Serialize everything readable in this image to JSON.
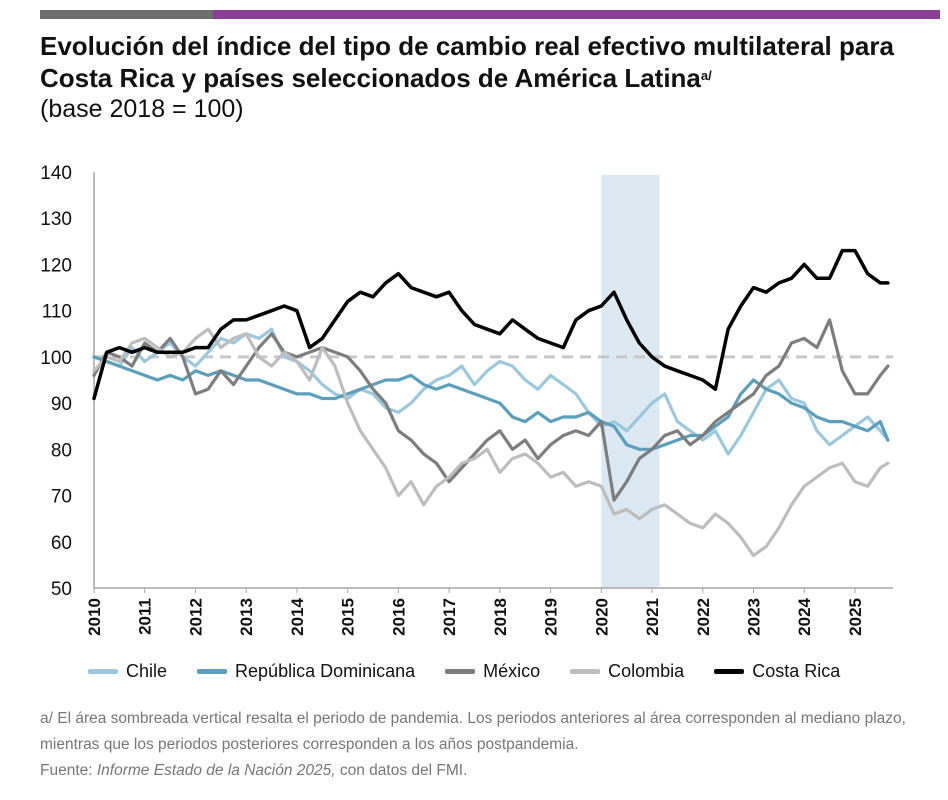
{
  "header": {
    "title": "Evolución del índice del tipo de cambio real efectivo multilateral para Costa Rica y países seleccionados de América Latina",
    "title_sup": "a/",
    "subtitle": "(base 2018 = 100)",
    "bar_colors": [
      "#6d6d6d",
      "#8a3f96"
    ]
  },
  "chart_data": {
    "type": "line",
    "title": "Evolución del índice del tipo de cambio real efectivo multilateral para Costa Rica y países seleccionados de América Latina",
    "subtitle": "(base 2018 = 100)",
    "xlabel": "",
    "ylabel": "",
    "ylim": [
      50,
      140
    ],
    "xlim": [
      2010,
      2025.75
    ],
    "yticks": [
      50,
      60,
      70,
      80,
      90,
      100,
      110,
      120,
      130,
      140
    ],
    "xticks": [
      "2010",
      "2011",
      "2012",
      "2013",
      "2014",
      "2015",
      "2016",
      "2017",
      "2018",
      "2019",
      "2020",
      "2021",
      "2022",
      "2023",
      "2024",
      "2025"
    ],
    "reference_line": {
      "value": 100,
      "color": "#c8c8c8",
      "style": "dashed"
    },
    "shaded_region": {
      "from": 2020.0,
      "to": 2021.15,
      "color": "#dde9f2",
      "label": "pandemia"
    },
    "legend_position": "bottom",
    "series": [
      {
        "name": "Chile",
        "color": "#9cc8dd",
        "x": [
          2010,
          2010.25,
          2010.5,
          2010.75,
          2011,
          2011.25,
          2011.5,
          2011.75,
          2012,
          2012.25,
          2012.5,
          2012.75,
          2013,
          2013.25,
          2013.5,
          2013.75,
          2014,
          2014.25,
          2014.5,
          2014.75,
          2015,
          2015.25,
          2015.5,
          2015.75,
          2016,
          2016.25,
          2016.5,
          2016.75,
          2017,
          2017.25,
          2017.5,
          2017.75,
          2018,
          2018.25,
          2018.5,
          2018.75,
          2019,
          2019.25,
          2019.5,
          2019.75,
          2020,
          2020.25,
          2020.5,
          2020.75,
          2021,
          2021.25,
          2021.5,
          2021.75,
          2022,
          2022.25,
          2022.5,
          2022.75,
          2023,
          2023.25,
          2023.5,
          2023.75,
          2024,
          2024.25,
          2024.5,
          2024.75,
          2025,
          2025.25,
          2025.5,
          2025.65
        ],
        "y": [
          100,
          99,
          98,
          102,
          99,
          101,
          103,
          100,
          98,
          101,
          104,
          103,
          105,
          104,
          106,
          100,
          99,
          97,
          94,
          92,
          91,
          93,
          92,
          89,
          88,
          90,
          93,
          95,
          96,
          98,
          94,
          97,
          99,
          98,
          95,
          93,
          96,
          94,
          92,
          88,
          85,
          86,
          84,
          87,
          90,
          92,
          86,
          84,
          82,
          84,
          79,
          83,
          88,
          93,
          95,
          91,
          90,
          84,
          81,
          83,
          85,
          87,
          84,
          82
        ]
      },
      {
        "name": "República Dominicana",
        "color": "#5b9fbd",
        "x": [
          2010,
          2010.25,
          2010.5,
          2010.75,
          2011,
          2011.25,
          2011.5,
          2011.75,
          2012,
          2012.25,
          2012.5,
          2012.75,
          2013,
          2013.25,
          2013.5,
          2013.75,
          2014,
          2014.25,
          2014.5,
          2014.75,
          2015,
          2015.25,
          2015.5,
          2015.75,
          2016,
          2016.25,
          2016.5,
          2016.75,
          2017,
          2017.25,
          2017.5,
          2017.75,
          2018,
          2018.25,
          2018.5,
          2018.75,
          2019,
          2019.25,
          2019.5,
          2019.75,
          2020,
          2020.25,
          2020.5,
          2020.75,
          2021,
          2021.25,
          2021.5,
          2021.75,
          2022,
          2022.25,
          2022.5,
          2022.75,
          2023,
          2023.25,
          2023.5,
          2023.75,
          2024,
          2024.25,
          2024.5,
          2024.75,
          2025,
          2025.25,
          2025.5,
          2025.65
        ],
        "y": [
          100,
          99,
          98,
          97,
          96,
          95,
          96,
          95,
          97,
          96,
          97,
          96,
          95,
          95,
          94,
          93,
          92,
          92,
          91,
          91,
          92,
          93,
          94,
          95,
          95,
          96,
          94,
          93,
          94,
          93,
          92,
          91,
          90,
          87,
          86,
          88,
          86,
          87,
          87,
          88,
          86,
          85,
          81,
          80,
          80,
          81,
          82,
          83,
          83,
          85,
          87,
          92,
          95,
          93,
          92,
          90,
          89,
          87,
          86,
          86,
          85,
          84,
          86,
          82
        ]
      },
      {
        "name": "México",
        "color": "#7d7d7d",
        "x": [
          2010,
          2010.25,
          2010.5,
          2010.75,
          2011,
          2011.25,
          2011.5,
          2011.75,
          2012,
          2012.25,
          2012.5,
          2012.75,
          2013,
          2013.25,
          2013.5,
          2013.75,
          2014,
          2014.25,
          2014.5,
          2014.75,
          2015,
          2015.25,
          2015.5,
          2015.75,
          2016,
          2016.25,
          2016.5,
          2016.75,
          2017,
          2017.25,
          2017.5,
          2017.75,
          2018,
          2018.25,
          2018.5,
          2018.75,
          2019,
          2019.25,
          2019.5,
          2019.75,
          2020,
          2020.25,
          2020.5,
          2020.75,
          2021,
          2021.25,
          2021.5,
          2021.75,
          2022,
          2022.25,
          2022.5,
          2022.75,
          2023,
          2023.25,
          2023.5,
          2023.75,
          2024,
          2024.25,
          2024.5,
          2024.75,
          2025,
          2025.25,
          2025.5,
          2025.65
        ],
        "y": [
          96,
          101,
          100,
          98,
          103,
          101,
          104,
          100,
          92,
          93,
          97,
          94,
          98,
          102,
          105,
          101,
          100,
          101,
          102,
          101,
          100,
          97,
          93,
          90,
          84,
          82,
          79,
          77,
          73,
          76,
          79,
          82,
          84,
          80,
          82,
          78,
          81,
          83,
          84,
          83,
          86,
          69,
          73,
          78,
          80,
          83,
          84,
          81,
          83,
          86,
          88,
          90,
          92,
          96,
          98,
          103,
          104,
          102,
          108,
          97,
          92,
          92,
          96,
          98
        ]
      },
      {
        "name": "Colombia",
        "color": "#bdbdbd",
        "x": [
          2010,
          2010.25,
          2010.5,
          2010.75,
          2011,
          2011.25,
          2011.5,
          2011.75,
          2012,
          2012.25,
          2012.5,
          2012.75,
          2013,
          2013.25,
          2013.5,
          2013.75,
          2014,
          2014.25,
          2014.5,
          2014.75,
          2015,
          2015.25,
          2015.5,
          2015.75,
          2016,
          2016.25,
          2016.5,
          2016.75,
          2017,
          2017.25,
          2017.5,
          2017.75,
          2018,
          2018.25,
          2018.5,
          2018.75,
          2019,
          2019.25,
          2019.5,
          2019.75,
          2020,
          2020.25,
          2020.5,
          2020.75,
          2021,
          2021.25,
          2021.5,
          2021.75,
          2022,
          2022.25,
          2022.5,
          2022.75,
          2023,
          2023.25,
          2023.5,
          2023.75,
          2024,
          2024.25,
          2024.5,
          2024.75,
          2025,
          2025.25,
          2025.5,
          2025.65
        ],
        "y": [
          97,
          100,
          99,
          103,
          104,
          102,
          100,
          101,
          104,
          106,
          102,
          104,
          105,
          100,
          98,
          101,
          99,
          95,
          102,
          98,
          90,
          84,
          80,
          76,
          70,
          73,
          68,
          72,
          74,
          77,
          78,
          80,
          75,
          78,
          79,
          77,
          74,
          75,
          72,
          73,
          72,
          66,
          67,
          65,
          67,
          68,
          66,
          64,
          63,
          66,
          64,
          61,
          57,
          59,
          63,
          68,
          72,
          74,
          76,
          77,
          73,
          72,
          76,
          77
        ]
      },
      {
        "name": "Costa Rica",
        "color": "#000000",
        "x": [
          2010,
          2010.25,
          2010.5,
          2010.75,
          2011,
          2011.25,
          2011.5,
          2011.75,
          2012,
          2012.25,
          2012.5,
          2012.75,
          2013,
          2013.25,
          2013.5,
          2013.75,
          2014,
          2014.25,
          2014.5,
          2014.75,
          2015,
          2015.25,
          2015.5,
          2015.75,
          2016,
          2016.25,
          2016.5,
          2016.75,
          2017,
          2017.25,
          2017.5,
          2017.75,
          2018,
          2018.25,
          2018.5,
          2018.75,
          2019,
          2019.25,
          2019.5,
          2019.75,
          2020,
          2020.25,
          2020.5,
          2020.75,
          2021,
          2021.25,
          2021.5,
          2021.75,
          2022,
          2022.25,
          2022.5,
          2022.75,
          2023,
          2023.25,
          2023.5,
          2023.75,
          2024,
          2024.25,
          2024.5,
          2024.75,
          2025,
          2025.25,
          2025.5,
          2025.65
        ],
        "y": [
          91,
          101,
          102,
          101,
          102,
          101,
          101,
          101,
          102,
          102,
          106,
          108,
          108,
          109,
          110,
          111,
          110,
          102,
          104,
          108,
          112,
          114,
          113,
          116,
          118,
          115,
          114,
          113,
          114,
          110,
          107,
          106,
          105,
          108,
          106,
          104,
          103,
          102,
          108,
          110,
          111,
          114,
          108,
          103,
          100,
          98,
          97,
          96,
          95,
          93,
          106,
          111,
          115,
          114,
          116,
          117,
          120,
          117,
          117,
          123,
          123,
          118,
          116,
          116
        ]
      }
    ]
  },
  "legend": {
    "items": [
      "Chile",
      "República Dominicana",
      "México",
      "Colombia",
      "Costa Rica"
    ],
    "colors": [
      "#9cc8dd",
      "#5b9fbd",
      "#7d7d7d",
      "#bdbdbd",
      "#000000"
    ]
  },
  "notes": {
    "footnote": "a/ El área sombreada vertical resalta el periodo de pandemia. Los periodos anteriores al área corresponden al mediano plazo, mientras que los periodos posteriores corresponden a los años postpandemia.",
    "source_prefix": "Fuente: ",
    "source_title": "Informe Estado de la Nación 2025,",
    "source_suffix": " con datos del FMI."
  }
}
